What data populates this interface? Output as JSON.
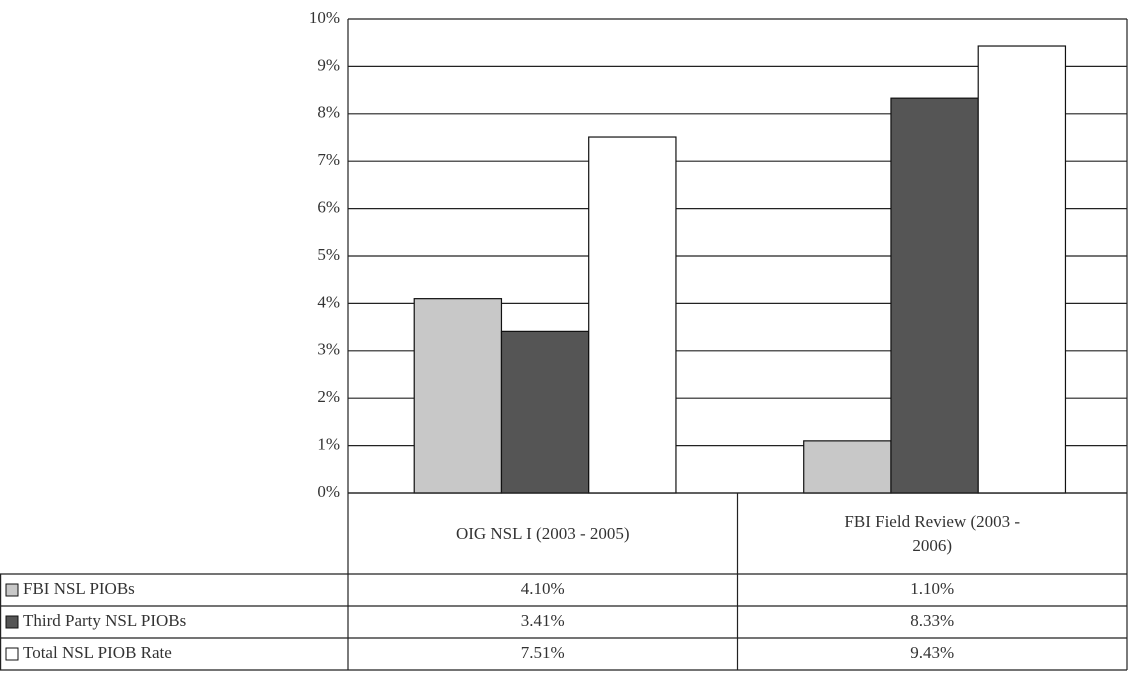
{
  "chart_data": {
    "type": "bar",
    "categories": [
      "OIG NSL I (2003 - 2005)",
      "FBI Field Review (2003 - 2006)"
    ],
    "series": [
      {
        "name": "FBI NSL PIOBs",
        "color": "#c8c8c8",
        "values": [
          4.1,
          1.1
        ],
        "value_labels": [
          "4.10%",
          "1.10%"
        ]
      },
      {
        "name": "Third Party NSL PIOBs",
        "color": "#555555",
        "values": [
          3.41,
          8.33
        ],
        "value_labels": [
          "3.41%",
          "8.33%"
        ]
      },
      {
        "name": "Total NSL PIOB Rate",
        "color": "#ffffff",
        "values": [
          7.51,
          9.43
        ],
        "value_labels": [
          "7.51%",
          "9.43%"
        ]
      }
    ],
    "ylim": [
      0,
      10
    ],
    "yticks": [
      {
        "value": 0,
        "label": "0%"
      },
      {
        "value": 1,
        "label": "1%"
      },
      {
        "value": 2,
        "label": "2%"
      },
      {
        "value": 3,
        "label": "3%"
      },
      {
        "value": 4,
        "label": "4%"
      },
      {
        "value": 5,
        "label": "5%"
      },
      {
        "value": 6,
        "label": "6%"
      },
      {
        "value": 7,
        "label": "7%"
      },
      {
        "value": 8,
        "label": "8%"
      },
      {
        "value": 9,
        "label": "9%"
      },
      {
        "value": 10,
        "label": "10%"
      }
    ],
    "grid": true,
    "data_table": true
  }
}
